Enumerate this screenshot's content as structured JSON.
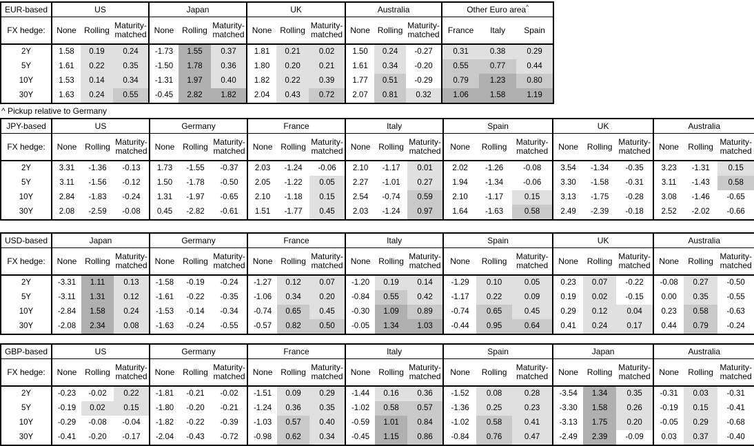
{
  "colors": {
    "background": "#ffffff",
    "border": "#000000",
    "text": "#000000",
    "shade_light": "#e0e0e0",
    "shade_mid": "#c9c9c9",
    "shade_dark": "#b0b0b0"
  },
  "fx_hedge_label": "FX hedge:",
  "hedge_cols": [
    "None",
    "Rolling",
    "Maturity-matched"
  ],
  "row_labels": [
    "2Y",
    "5Y",
    "10Y",
    "30Y"
  ],
  "footnote": "^ Pickup relative to Germany",
  "shading_rule": {
    "applies_to": "Rolling, Maturity-matched and pickup columns with positive values",
    "light": "0 < v < 0.5",
    "mid": "0.5 <= v < 1.0",
    "dark": "v >= 1.0"
  },
  "tables": [
    {
      "label": "EUR-based",
      "groups": [
        {
          "name": "US",
          "values": [
            [
              "1.58",
              "0.19",
              "0.24"
            ],
            [
              "1.61",
              "0.22",
              "0.35"
            ],
            [
              "1.53",
              "0.14",
              "0.34"
            ],
            [
              "1.63",
              "0.24",
              "0.55"
            ]
          ]
        },
        {
          "name": "Japan",
          "values": [
            [
              "-1.73",
              "1.55",
              "0.37"
            ],
            [
              "-1.50",
              "1.78",
              "0.36"
            ],
            [
              "-1.31",
              "1.97",
              "0.40"
            ],
            [
              "-0.45",
              "2.82",
              "1.82"
            ]
          ]
        },
        {
          "name": "UK",
          "values": [
            [
              "1.81",
              "0.21",
              "0.02"
            ],
            [
              "1.80",
              "0.20",
              "0.21"
            ],
            [
              "1.82",
              "0.22",
              "0.39"
            ],
            [
              "2.04",
              "0.43",
              "0.72"
            ]
          ]
        },
        {
          "name": "Australia",
          "values": [
            [
              "1.50",
              "0.24",
              "-0.27"
            ],
            [
              "1.61",
              "0.34",
              "-0.20"
            ],
            [
              "1.77",
              "0.51",
              "-0.29"
            ],
            [
              "2.07",
              "0.81",
              "0.32"
            ]
          ]
        },
        {
          "name": "Other Euro area",
          "sup": "^",
          "pickup": true,
          "cols": [
            "France",
            "Italy",
            "Spain"
          ],
          "values": [
            [
              "0.31",
              "0.38",
              "0.29"
            ],
            [
              "0.55",
              "0.77",
              "0.44"
            ],
            [
              "0.79",
              "1.23",
              "0.80"
            ],
            [
              "1.06",
              "1.58",
              "1.19"
            ]
          ]
        }
      ]
    },
    {
      "label": "JPY-based",
      "groups": [
        {
          "name": "US",
          "values": [
            [
              "3.31",
              "-1.36",
              "-0.13"
            ],
            [
              "3.11",
              "-1.56",
              "-0.12"
            ],
            [
              "2.84",
              "-1.83",
              "-0.24"
            ],
            [
              "2.08",
              "-2.59",
              "-0.08"
            ]
          ]
        },
        {
          "name": "Germany",
          "values": [
            [
              "1.73",
              "-1.55",
              "-0.37"
            ],
            [
              "1.50",
              "-1.78",
              "-0.50"
            ],
            [
              "1.31",
              "-1.97",
              "-0.65"
            ],
            [
              "0.45",
              "-2.82",
              "-0.61"
            ]
          ]
        },
        {
          "name": "France",
          "values": [
            [
              "2.03",
              "-1.24",
              "-0.06"
            ],
            [
              "2.05",
              "-1.22",
              "0.05"
            ],
            [
              "2.10",
              "-1.18",
              "0.15"
            ],
            [
              "1.51",
              "-1.77",
              "0.45"
            ]
          ]
        },
        {
          "name": "Italy",
          "values": [
            [
              "2.10",
              "-1.17",
              "0.01"
            ],
            [
              "2.27",
              "-1.01",
              "0.27"
            ],
            [
              "2.54",
              "-0.74",
              "0.59"
            ],
            [
              "2.03",
              "-1.24",
              "0.97"
            ]
          ]
        },
        {
          "name": "Spain",
          "values": [
            [
              "2.02",
              "-1.26",
              "-0.08"
            ],
            [
              "1.94",
              "-1.34",
              "-0.06"
            ],
            [
              "2.10",
              "-1.17",
              "0.15"
            ],
            [
              "1.64",
              "-1.63",
              "0.58"
            ]
          ]
        },
        {
          "name": "UK",
          "values": [
            [
              "3.54",
              "-1.34",
              "-0.35"
            ],
            [
              "3.30",
              "-1.58",
              "-0.31"
            ],
            [
              "3.13",
              "-1.75",
              "-0.28"
            ],
            [
              "2.49",
              "-2.39",
              "-0.18"
            ]
          ]
        },
        {
          "name": "Australia",
          "values": [
            [
              "3.23",
              "-1.31",
              "0.15"
            ],
            [
              "3.11",
              "-1.43",
              "0.58"
            ],
            [
              "3.08",
              "-1.46",
              "-0.65"
            ],
            [
              "2.52",
              "-2.02",
              "-0.66"
            ]
          ]
        }
      ]
    },
    {
      "label": "USD-based",
      "groups": [
        {
          "name": "Japan",
          "values": [
            [
              "-3.31",
              "1.11",
              "0.13"
            ],
            [
              "-3.11",
              "1.31",
              "0.12"
            ],
            [
              "-2.84",
              "1.58",
              "0.24"
            ],
            [
              "-2.08",
              "2.34",
              "0.08"
            ]
          ]
        },
        {
          "name": "Germany",
          "values": [
            [
              "-1.58",
              "-0.19",
              "-0.24"
            ],
            [
              "-1.61",
              "-0.22",
              "-0.35"
            ],
            [
              "-1.53",
              "-0.14",
              "-0.34"
            ],
            [
              "-1.63",
              "-0.24",
              "-0.55"
            ]
          ]
        },
        {
          "name": "France",
          "values": [
            [
              "-1.27",
              "0.12",
              "0.07"
            ],
            [
              "-1.06",
              "0.34",
              "0.20"
            ],
            [
              "-0.74",
              "0.65",
              "0.45"
            ],
            [
              "-0.57",
              "0.82",
              "0.50"
            ]
          ]
        },
        {
          "name": "Italy",
          "values": [
            [
              "-1.20",
              "0.19",
              "0.14"
            ],
            [
              "-0.84",
              "0.55",
              "0.42"
            ],
            [
              "-0.30",
              "1.09",
              "0.89"
            ],
            [
              "-0.05",
              "1.34",
              "1.03"
            ]
          ]
        },
        {
          "name": "Spain",
          "values": [
            [
              "-1.29",
              "0.10",
              "0.05"
            ],
            [
              "-1.17",
              "0.22",
              "0.09"
            ],
            [
              "-0.74",
              "0.65",
              "0.45"
            ],
            [
              "-0.44",
              "0.95",
              "0.64"
            ]
          ]
        },
        {
          "name": "UK",
          "values": [
            [
              "0.23",
              "0.07",
              "-0.22"
            ],
            [
              "0.19",
              "0.02",
              "-0.15"
            ],
            [
              "0.29",
              "0.12",
              "0.04"
            ],
            [
              "0.41",
              "0.24",
              "0.17"
            ]
          ]
        },
        {
          "name": "Australia",
          "values": [
            [
              "-0.08",
              "0.27",
              "-0.50"
            ],
            [
              "0.00",
              "0.35",
              "-0.55"
            ],
            [
              "0.23",
              "0.58",
              "-0.63"
            ],
            [
              "0.44",
              "0.79",
              "-0.24"
            ]
          ]
        }
      ]
    },
    {
      "label": "GBP-based",
      "groups": [
        {
          "name": "US",
          "values": [
            [
              "-0.23",
              "-0.02",
              "0.22"
            ],
            [
              "-0.19",
              "0.02",
              "0.15"
            ],
            [
              "-0.29",
              "-0.08",
              "-0.04"
            ],
            [
              "-0.41",
              "-0.20",
              "-0.17"
            ]
          ]
        },
        {
          "name": "Germany",
          "values": [
            [
              "-1.81",
              "-0.21",
              "-0.02"
            ],
            [
              "-1.80",
              "-0.20",
              "-0.21"
            ],
            [
              "-1.82",
              "-0.22",
              "-0.39"
            ],
            [
              "-2.04",
              "-0.43",
              "-0.72"
            ]
          ]
        },
        {
          "name": "France",
          "values": [
            [
              "-1.51",
              "0.09",
              "0.29"
            ],
            [
              "-1.24",
              "0.36",
              "0.35"
            ],
            [
              "-1.03",
              "0.57",
              "0.40"
            ],
            [
              "-0.98",
              "0.62",
              "0.34"
            ]
          ]
        },
        {
          "name": "Italy",
          "values": [
            [
              "-1.44",
              "0.16",
              "0.36"
            ],
            [
              "-1.02",
              "0.58",
              "0.57"
            ],
            [
              "-0.59",
              "1.01",
              "0.84"
            ],
            [
              "-0.45",
              "1.15",
              "0.86"
            ]
          ]
        },
        {
          "name": "Spain",
          "values": [
            [
              "-1.52",
              "0.08",
              "0.28"
            ],
            [
              "-1.36",
              "0.25",
              "0.23"
            ],
            [
              "-1.02",
              "0.58",
              "0.41"
            ],
            [
              "-0.84",
              "0.76",
              "0.47"
            ]
          ]
        },
        {
          "name": "Japan",
          "values": [
            [
              "-3.54",
              "1.34",
              "0.35"
            ],
            [
              "-3.30",
              "1.58",
              "0.26"
            ],
            [
              "-3.13",
              "1.75",
              "0.20"
            ],
            [
              "-2.49",
              "2.39",
              "-0.09"
            ]
          ]
        },
        {
          "name": "Australia",
          "values": [
            [
              "-0.31",
              "0.03",
              "-0.31"
            ],
            [
              "-0.19",
              "0.15",
              "-0.41"
            ],
            [
              "-0.05",
              "0.29",
              "-0.68"
            ],
            [
              "0.03",
              "0.37",
              "-0.40"
            ]
          ]
        }
      ]
    }
  ]
}
